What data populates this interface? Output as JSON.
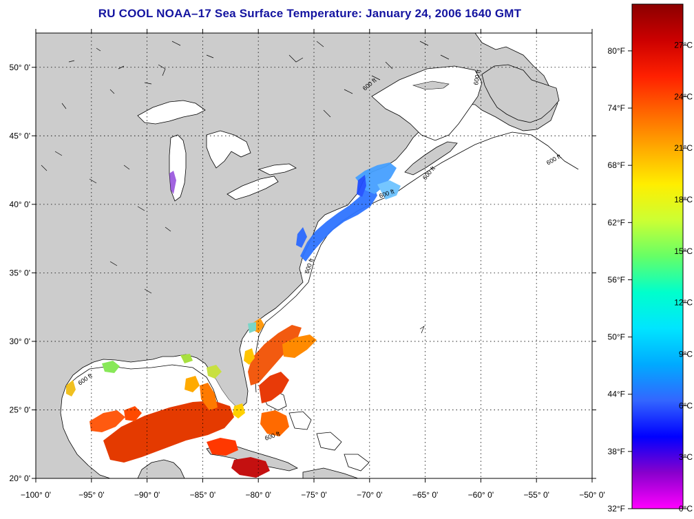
{
  "title": "RU COOL  NOAA–17  Sea Surface Temperature:  January 24, 2006 1640 GMT",
  "axes": {
    "lon_labels": [
      "−100° 0'",
      "−95° 0'",
      "−90° 0'",
      "−85° 0'",
      "−80° 0'",
      "−75° 0'",
      "−70° 0'",
      "−65° 0'",
      "−60° 0'",
      "−55° 0'",
      "−50° 0'"
    ],
    "lat_labels": [
      "50° 0'",
      "45° 0'",
      "40° 0'",
      "35° 0'",
      "30° 0'",
      "25° 0'",
      "20° 0'"
    ],
    "lon_range": [
      -100,
      -50
    ],
    "lat_range": [
      20,
      52.5
    ]
  },
  "colorbar": {
    "fahrenheit_labels": [
      "80°F",
      "74°F",
      "68°F",
      "62°F",
      "56°F",
      "50°F",
      "44°F",
      "38°F",
      "32°F"
    ],
    "celsius_labels": [
      "27°C",
      "24°C",
      "21°C",
      "18°C",
      "15°C",
      "12°C",
      "9°C",
      "6°C",
      "3°C",
      "0°C"
    ],
    "colors_top_to_bottom": [
      "#8b0000",
      "#cc0000",
      "#ff2000",
      "#ff6600",
      "#ffaa00",
      "#ffee00",
      "#ccff33",
      "#66ff66",
      "#00ffcc",
      "#00e5ff",
      "#00aaff",
      "#3366ff",
      "#0000ff",
      "#8800cc",
      "#ff00ff"
    ]
  },
  "map": {
    "land_color": "#cccccc",
    "ocean_color": "#ffffff",
    "isobath_label": "600 ft",
    "grid_style": "dotted"
  }
}
